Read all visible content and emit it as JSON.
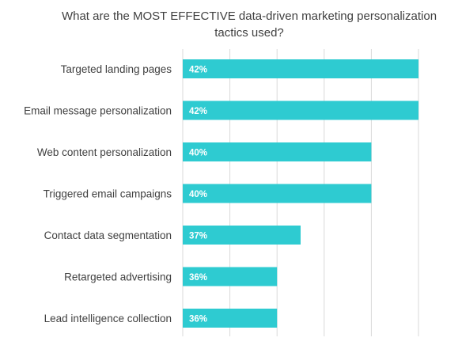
{
  "chart_data": {
    "type": "bar",
    "orientation": "horizontal",
    "title": "What are the MOST EFFECTIVE data-driven marketing personalization tactics used?",
    "categories": [
      "Targeted landing pages",
      "Email message personalization",
      "Web content personalization",
      "Triggered email campaigns",
      "Contact data segmentation",
      "Retargeted advertising",
      "Lead intelligence collection"
    ],
    "values": [
      42,
      42,
      40,
      40,
      37,
      36,
      36
    ],
    "value_labels": [
      "42%",
      "42%",
      "40%",
      "40%",
      "37%",
      "36%",
      "36%"
    ],
    "xlim": [
      32,
      42
    ],
    "grid": true,
    "legend": "none",
    "bar_color": "#2ECBD1",
    "grid_color": "#D9D9D9",
    "label_color": "#404040",
    "value_label_color": "#FFFFFF"
  }
}
